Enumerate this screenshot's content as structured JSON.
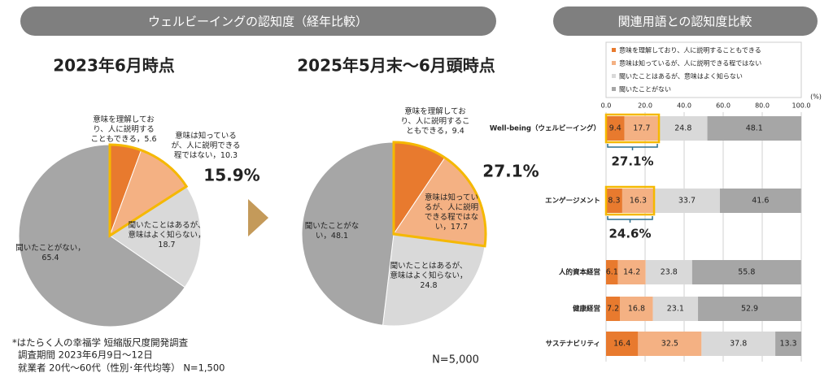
{
  "header": "ウェルビーイングの認知度（経年比較）",
  "notes": [
    "*はたらく人の幸福学 短縮版尺度開発調査",
    "調査期間 2023年6月9日～12日",
    "就業者 20代～60代（性別･年代均等） N=1,500"
  ],
  "chart_data": [
    {
      "type": "pie",
      "title": "2023年6月時点",
      "categories": [
        "意味を理解しており、人に説明することもできる",
        "意味は知っているが、人に説明できる程ではない",
        "聞いたことはあるが、意味はよく知らない",
        "聞いたことがない"
      ],
      "values": [
        5.6,
        10.3,
        18.7,
        65.4
      ],
      "value_labels": [
        "意味を理解しており、人に説明することもできる，5.6",
        "意味は知っているが、人に説明できる程ではない，10.3",
        "聞いたことはあるが、意味はよく知らない，18.7",
        "聞いたことがない，65.4"
      ],
      "colors": [
        "#e87a2e",
        "#f4b183",
        "#d9d9d9",
        "#a6a6a6"
      ],
      "annotation": "15.9%"
    },
    {
      "type": "pie",
      "title": "2025年5月末～6月頭時点",
      "categories": [
        "意味を理解しており、人に説明することもできる",
        "意味は知っているが、人に説明できる程ではない",
        "聞いたことはあるが、意味はよく知らない",
        "聞いたことがない"
      ],
      "values": [
        9.4,
        17.7,
        24.8,
        48.1
      ],
      "value_labels": [
        "意味を理解しており、人に説明することもできる，9.4",
        "意味は知っているが、人に説明できる程ではない，17.7",
        "聞いたことはあるが、意味はよく知らない，24.8",
        "聞いたことがない，48.1"
      ],
      "colors": [
        "#e87a2e",
        "#f4b183",
        "#d9d9d9",
        "#a6a6a6"
      ],
      "annotation": "27.1%",
      "note": "N=5,000"
    },
    {
      "type": "bar",
      "orientation": "horizontal",
      "stacked": true,
      "title": "関連用語との認知度比較",
      "categories": [
        "Well-being（ウェルビーイング）",
        "エンゲージメント",
        "人的資本経営",
        "健康経営",
        "サステナビリティ"
      ],
      "series": [
        {
          "name": "意味を理解しており、人に説明することもできる",
          "color": "#e87a2e",
          "values": [
            9.4,
            8.3,
            6.1,
            7.2,
            16.4
          ]
        },
        {
          "name": "意味は知っているが、人に説明できる程ではない",
          "color": "#f4b183",
          "values": [
            17.7,
            16.3,
            14.2,
            16.8,
            32.5
          ]
        },
        {
          "name": "聞いたことはあるが、意味はよく知らない",
          "color": "#d9d9d9",
          "values": [
            24.8,
            33.7,
            23.8,
            23.1,
            37.8
          ]
        },
        {
          "name": "聞いたことがない",
          "color": "#a6a6a6",
          "values": [
            48.1,
            41.6,
            55.8,
            52.9,
            13.3
          ]
        }
      ],
      "xlim": [
        0,
        100
      ],
      "xticks": [
        {
          "value": 0,
          "label": "0.0"
        },
        {
          "value": 20,
          "label": "20.0"
        },
        {
          "value": 40,
          "label": "40.0"
        },
        {
          "value": 60,
          "label": "60.0"
        },
        {
          "value": 80,
          "label": "80.0"
        },
        {
          "value": 100,
          "label": "100.0"
        }
      ],
      "x_unit": "(%)",
      "grid": true,
      "annotations": [
        "27.1%",
        "24.6%"
      ]
    }
  ]
}
